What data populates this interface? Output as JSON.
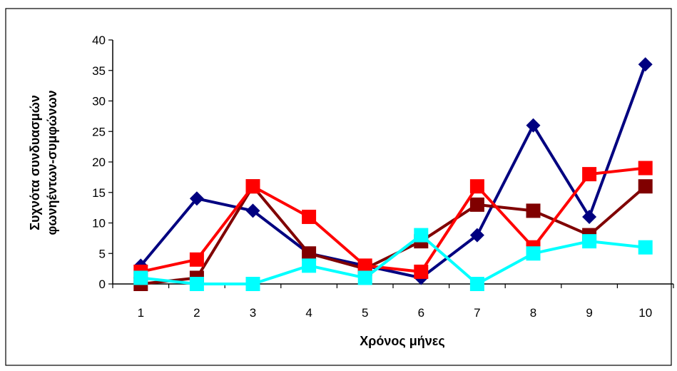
{
  "chart_data": {
    "type": "line",
    "title": "",
    "xlabel": "Χρόνος μήνες",
    "ylabel_lines": [
      "Συχνότα συνδυασμών",
      "φωνηέντων-συμφώνων"
    ],
    "categories": [
      1,
      2,
      3,
      4,
      5,
      6,
      7,
      8,
      9,
      10
    ],
    "ylim": [
      0,
      40
    ],
    "yticks": [
      0,
      5,
      10,
      15,
      20,
      25,
      30,
      35,
      40
    ],
    "grid": false,
    "legend": "none",
    "series": [
      {
        "color": "#000080",
        "marker": "diamond",
        "values": [
          3,
          14,
          12,
          5,
          3,
          1,
          8,
          26,
          11,
          36
        ]
      },
      {
        "color": "#800000",
        "marker": "square",
        "values": [
          0,
          1,
          16,
          5,
          2.5,
          7,
          13,
          12,
          8,
          16
        ]
      },
      {
        "color": "#ff0000",
        "marker": "square",
        "values": [
          2,
          4,
          16,
          11,
          3,
          2,
          16,
          6,
          18,
          19
        ]
      },
      {
        "color": "#00ffff",
        "marker": "square",
        "values": [
          1,
          0,
          0,
          3,
          1,
          8,
          0,
          5,
          7,
          6
        ]
      }
    ]
  }
}
